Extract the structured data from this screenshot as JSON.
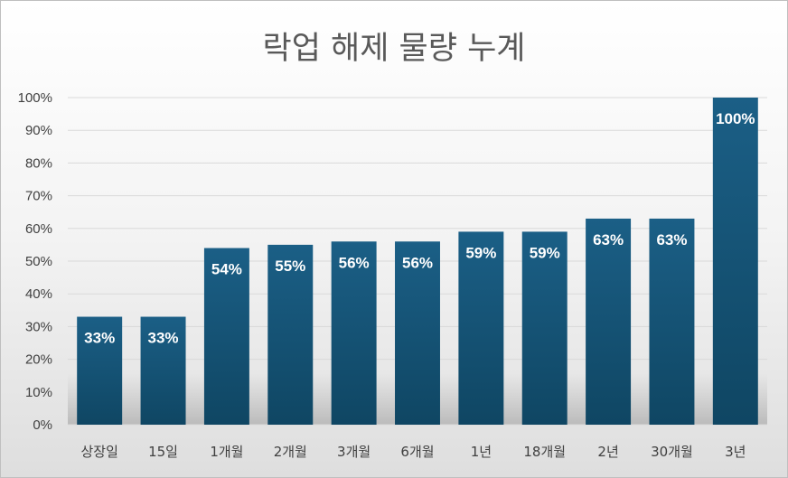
{
  "chart_data": {
    "type": "bar",
    "title": "락업 해제 물량 누계",
    "xlabel": "",
    "ylabel": "",
    "categories": [
      "상장일",
      "15일",
      "1개월",
      "2개월",
      "3개월",
      "6개월",
      "1년",
      "18개월",
      "2년",
      "30개월",
      "3년"
    ],
    "values": [
      33,
      33,
      54,
      55,
      56,
      56,
      59,
      59,
      63,
      63,
      100
    ],
    "data_labels": [
      "33%",
      "33%",
      "54%",
      "55%",
      "56%",
      "56%",
      "59%",
      "59%",
      "63%",
      "63%",
      "100%"
    ],
    "ylim": [
      0,
      100
    ],
    "yticks": [
      0,
      10,
      20,
      30,
      40,
      50,
      60,
      70,
      80,
      90,
      100
    ],
    "ytick_labels": [
      "0%",
      "10%",
      "20%",
      "30%",
      "40%",
      "50%",
      "60%",
      "70%",
      "80%",
      "90%",
      "100%"
    ],
    "grid": true,
    "legend": "none",
    "colors": {
      "bar_top": "#1b5f86",
      "bar_bottom": "#0f4663",
      "grid": "#d9d9d9",
      "label": "#ffffff"
    }
  }
}
